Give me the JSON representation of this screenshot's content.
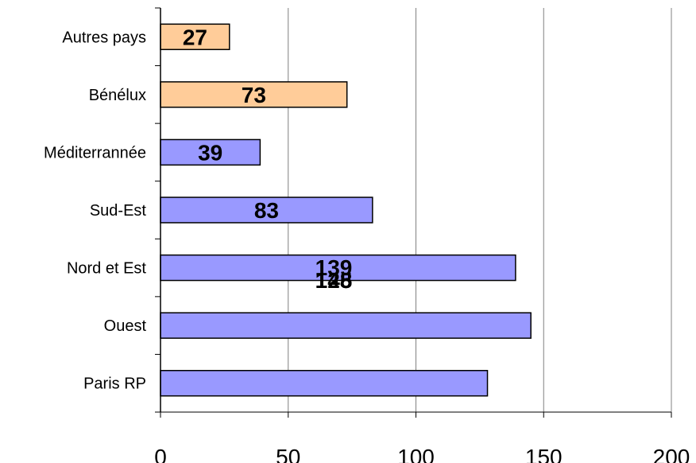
{
  "chart_data": {
    "type": "bar",
    "orientation": "horizontal",
    "categories": [
      "Autres pays",
      "Bénélux",
      "Méditerrannée",
      "Sud-Est",
      "Nord et Est",
      "Ouest",
      "Paris RP"
    ],
    "values": [
      27,
      73,
      39,
      83,
      139,
      145,
      128
    ],
    "data_labels": [
      "27",
      "73",
      "39",
      "83",
      "139",
      "145",
      "128"
    ],
    "bar_colors": [
      "#FFCC99",
      "#FFCC99",
      "#9999FF",
      "#9999FF",
      "#9999FF",
      "#9999FF",
      "#9999FF"
    ],
    "xlim": [
      0,
      200
    ],
    "xticks": [
      "0",
      "50",
      "100",
      "150",
      "200"
    ],
    "title": "",
    "xlabel": "",
    "ylabel": "",
    "grid": "vertical",
    "legend": "none"
  }
}
